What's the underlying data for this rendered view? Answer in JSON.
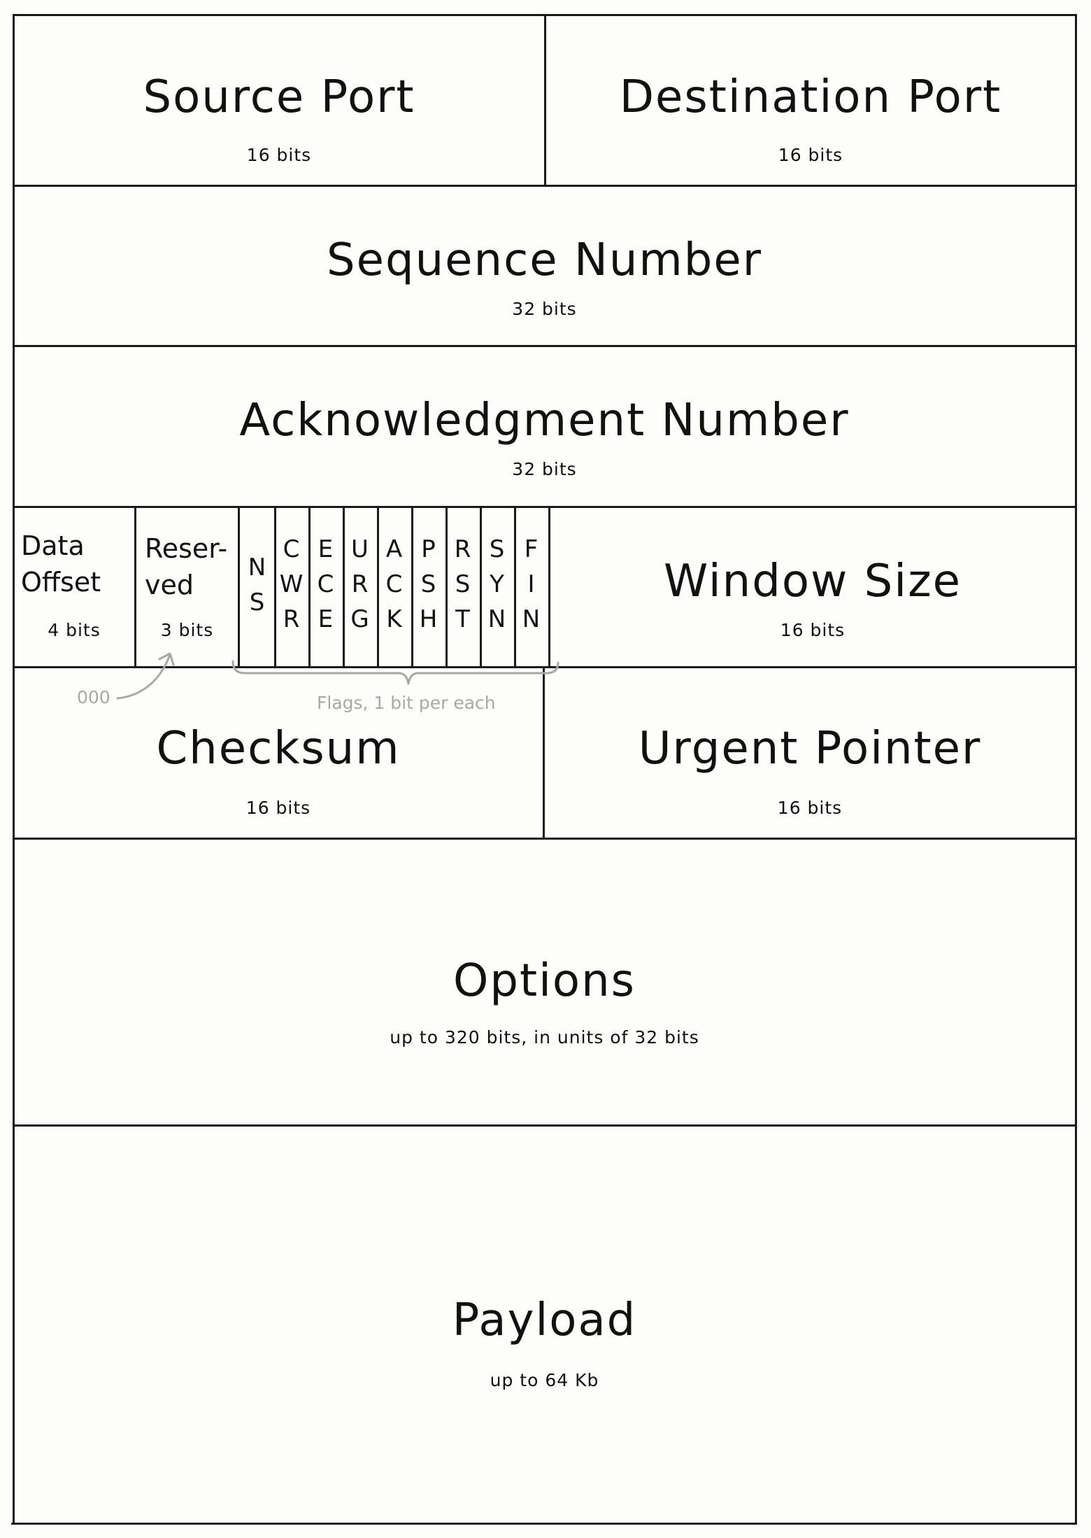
{
  "fields": {
    "source_port": {
      "name": "Source Port",
      "bits": "16 bits"
    },
    "destination_port": {
      "name": "Destination Port",
      "bits": "16 bits"
    },
    "sequence_number": {
      "name": "Sequence Number",
      "bits": "32 bits"
    },
    "acknowledgment_number": {
      "name": "Acknowledgment Number",
      "bits": "32 bits"
    },
    "data_offset": {
      "name": "Data\nOffset",
      "bits": "4 bits"
    },
    "reserved": {
      "name": "Reser-\nved",
      "bits": "3 bits"
    },
    "window_size": {
      "name": "Window Size",
      "bits": "16 bits"
    },
    "checksum": {
      "name": "Checksum",
      "bits": "16 bits"
    },
    "urgent_pointer": {
      "name": "Urgent Pointer",
      "bits": "16 bits"
    },
    "options": {
      "name": "Options",
      "bits": "up to 320 bits, in units of 32 bits"
    },
    "payload": {
      "name": "Payload",
      "bits": "up to 64 Kb"
    }
  },
  "flags": [
    {
      "name": "NS",
      "text": "N\nS"
    },
    {
      "name": "CWR",
      "text": "C\nW\nR"
    },
    {
      "name": "ECE",
      "text": "E\nC\nE"
    },
    {
      "name": "URG",
      "text": "U\nR\nG"
    },
    {
      "name": "ACK",
      "text": "A\nC\nK"
    },
    {
      "name": "PSH",
      "text": "P\nS\nH"
    },
    {
      "name": "RST",
      "text": "R\nS\nT"
    },
    {
      "name": "SYN",
      "text": "S\nY\nN"
    },
    {
      "name": "FIN",
      "text": "F\nI\nN"
    }
  ],
  "annotations": {
    "reserved_value": "000",
    "flags_note": "Flags, 1 bit per each"
  },
  "colors": {
    "ink": "#1a1a1a",
    "annotation": "#a8a8a8",
    "paper": "#fdfdfc"
  }
}
